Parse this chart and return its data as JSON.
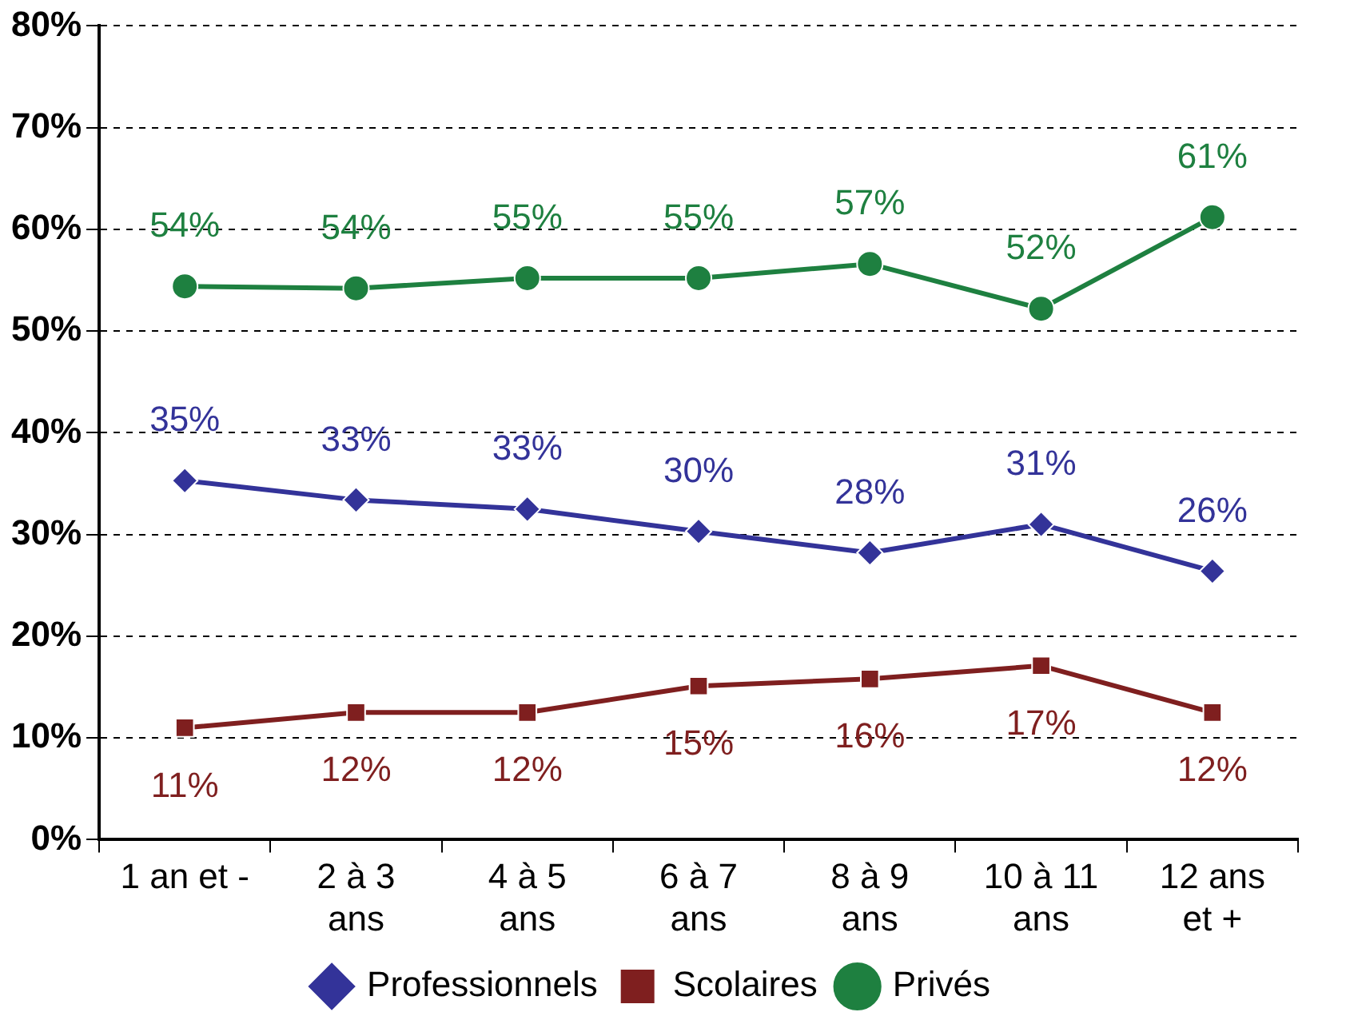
{
  "chart_data": {
    "type": "line",
    "categories": [
      "1 an et -",
      "2 à 3\nans",
      "4 à 5\nans",
      "6 à 7\nans",
      "8 à 9\nans",
      "10 à 11\nans",
      "12 ans\net +"
    ],
    "series": [
      {
        "name": "Professionnels",
        "color": "#333399",
        "marker": "diamond",
        "values": [
          35.3,
          33.4,
          32.5,
          30.3,
          28.2,
          31,
          26.4
        ],
        "value_labels": [
          "35%",
          "33%",
          "33%",
          "30%",
          "28%",
          "31%",
          "26%"
        ]
      },
      {
        "name": "Scolaires",
        "color": "#7f1f1f",
        "marker": "square",
        "values": [
          11,
          12.5,
          12.5,
          15.1,
          15.8,
          17.1,
          12.5
        ],
        "value_labels": [
          "11%",
          "12%",
          "12%",
          "15%",
          "16%",
          "17%",
          "12%"
        ]
      },
      {
        "name": "Privés",
        "color": "#1e8040",
        "marker": "circle",
        "values": [
          54.4,
          54.2,
          55.2,
          55.2,
          56.6,
          52.2,
          61.2
        ],
        "value_labels": [
          "54%",
          "54%",
          "55%",
          "55%",
          "57%",
          "52%",
          "61%"
        ]
      }
    ],
    "ylim": [
      0,
      80
    ],
    "yticks": [
      {
        "value": 0,
        "label": "0%"
      },
      {
        "value": 10,
        "label": "10%"
      },
      {
        "value": 20,
        "label": "20%"
      },
      {
        "value": 30,
        "label": "30%"
      },
      {
        "value": 40,
        "label": "40%"
      },
      {
        "value": 50,
        "label": "50%"
      },
      {
        "value": 60,
        "label": "60%"
      },
      {
        "value": 70,
        "label": "70%"
      },
      {
        "value": 80,
        "label": "80%"
      }
    ],
    "grid": "y",
    "legend": "bottom",
    "line_style": "solid"
  }
}
